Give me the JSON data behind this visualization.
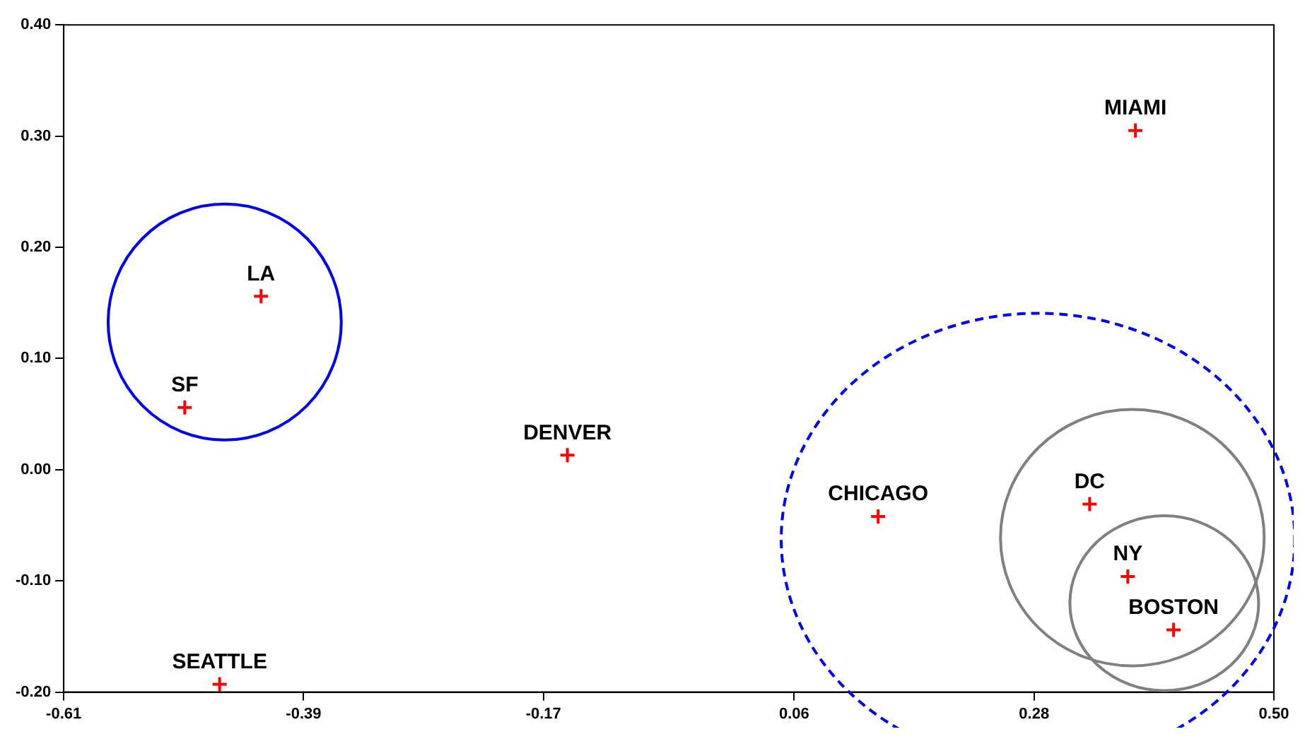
{
  "chart_data": {
    "type": "scatter",
    "x": [
      -0.467,
      -0.499,
      -0.429,
      -0.148,
      0.137,
      0.331,
      0.366,
      0.408,
      0.373
    ],
    "values": [
      -0.193,
      0.056,
      0.156,
      0.013,
      -0.042,
      -0.031,
      -0.096,
      -0.144,
      0.305
    ],
    "color": "#ff0000",
    "marker": "cross",
    "grid": false,
    "legend": false,
    "xlim": [
      -0.61,
      0.5
    ],
    "xticks": [
      {
        "value": -0.61,
        "label": "-0.61"
      },
      {
        "value": -0.39,
        "label": "-0.39"
      },
      {
        "value": -0.17,
        "label": "-0.17"
      },
      {
        "value": 0.06,
        "label": "0.06"
      },
      {
        "value": 0.28,
        "label": "0.28"
      },
      {
        "value": 0.5,
        "label": "0.50"
      }
    ],
    "ylim": [
      -0.2,
      0.4
    ],
    "yticks": [
      {
        "value": -0.2,
        "label": "-0.20"
      },
      {
        "value": -0.1,
        "label": "-0.10"
      },
      {
        "value": 0,
        "label": "0.00"
      },
      {
        "value": 0.1,
        "label": "0.10"
      },
      {
        "value": 0.2,
        "label": "0.20"
      },
      {
        "value": 0.3,
        "label": "0.30"
      },
      {
        "value": 0.4,
        "label": "0.40"
      }
    ],
    "annotations": [
      {
        "text": "SEATTLE",
        "x": -0.467,
        "y": -0.193
      },
      {
        "text": "SF",
        "x": -0.499,
        "y": 0.056
      },
      {
        "text": "LA",
        "x": -0.429,
        "y": 0.156
      },
      {
        "text": "DENVER",
        "x": -0.148,
        "y": 0.013
      },
      {
        "text": "CHICAGO",
        "x": 0.137,
        "y": -0.042
      },
      {
        "text": "DC",
        "x": 0.331,
        "y": -0.031
      },
      {
        "text": "NY",
        "x": 0.366,
        "y": -0.096
      },
      {
        "text": "BOSTON",
        "x": 0.408,
        "y": -0.144
      },
      {
        "text": "MIAMI",
        "x": 0.373,
        "y": 0.305
      }
    ]
  }
}
